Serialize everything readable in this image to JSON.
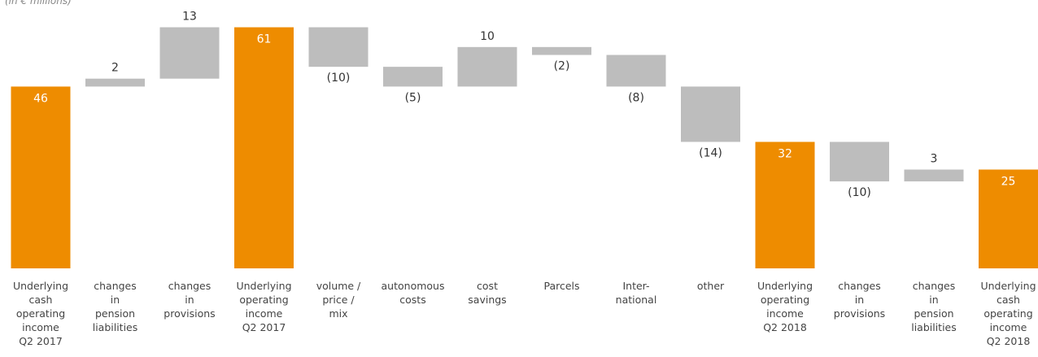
{
  "chart_data": {
    "type": "waterfall",
    "subtitle": "(in € millions)",
    "categories": [
      "Underlying\ncash\noperating\nincome\nQ2 2017",
      "changes\nin\npension\nliabilities",
      "changes\nin\nprovisions",
      "Underlying\noperating\nincome\nQ2 2017",
      "volume /\nprice /\nmix",
      "autonomous\ncosts",
      "cost\nsavings",
      "Parcels",
      "Inter-\nnational",
      "other",
      "Underlying\noperating\nincome\nQ2 2018",
      "changes\nin\nprovisions",
      "changes\nin\npension\nliabilities",
      "Underlying\ncash\noperating\nincome\nQ2 2018"
    ],
    "measures": [
      "absolute",
      "relative",
      "relative",
      "absolute",
      "relative",
      "relative",
      "relative",
      "relative",
      "relative",
      "relative",
      "absolute",
      "relative",
      "relative",
      "absolute"
    ],
    "values": [
      46,
      2,
      13,
      61,
      -10,
      -5,
      10,
      -2,
      -8,
      -14,
      32,
      -10,
      3,
      25
    ],
    "value_labels": [
      "46",
      "2",
      "13",
      "61",
      "(10)",
      "(5)",
      "10",
      "(2)",
      "(8)",
      "(14)",
      "32",
      "(10)",
      "3",
      "25"
    ],
    "total_color": "#ee8c00",
    "change_color": "#bdbdbd",
    "ylim": [
      0,
      65
    ]
  }
}
